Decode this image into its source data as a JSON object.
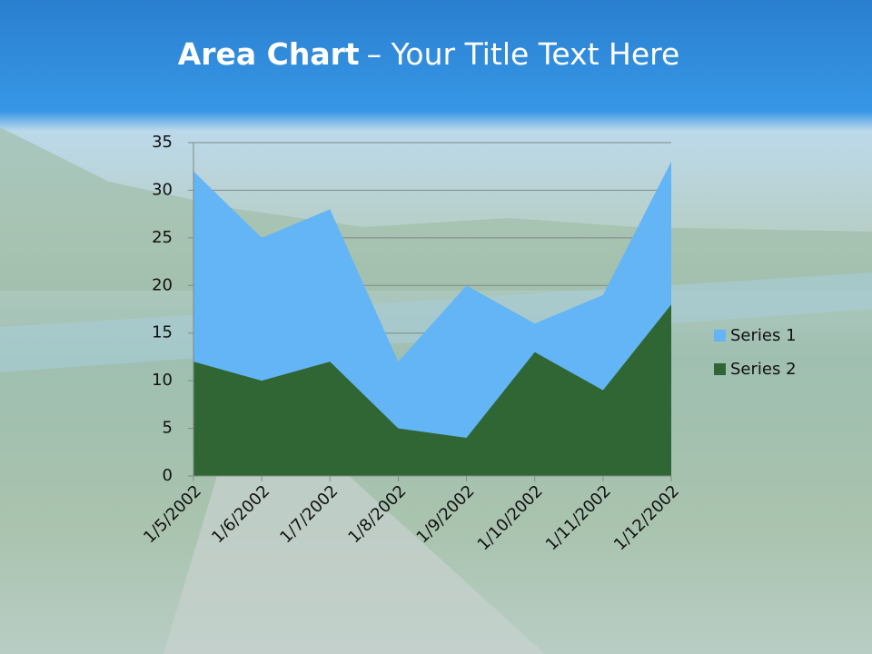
{
  "chart_data": {
    "type": "area",
    "title": {
      "bold": "Area Chart",
      "rest": "– Your Title Text Here"
    },
    "categories": [
      "1/5/2002",
      "1/6/2002",
      "1/7/2002",
      "1/8/2002",
      "1/9/2002",
      "1/10/2002",
      "1/11/2002",
      "1/12/2002"
    ],
    "series": [
      {
        "name": "Series 1",
        "color": "#63b5f6",
        "values": [
          32,
          25,
          28,
          12,
          20,
          16,
          19,
          33
        ]
      },
      {
        "name": "Series 2",
        "color": "#306633",
        "values": [
          12,
          10,
          12,
          5,
          4,
          13,
          9,
          18
        ]
      }
    ],
    "ylim": [
      0,
      35
    ],
    "yticks": [
      0,
      5,
      10,
      15,
      20,
      25,
      30,
      35
    ],
    "grid": true,
    "legend": "right"
  }
}
